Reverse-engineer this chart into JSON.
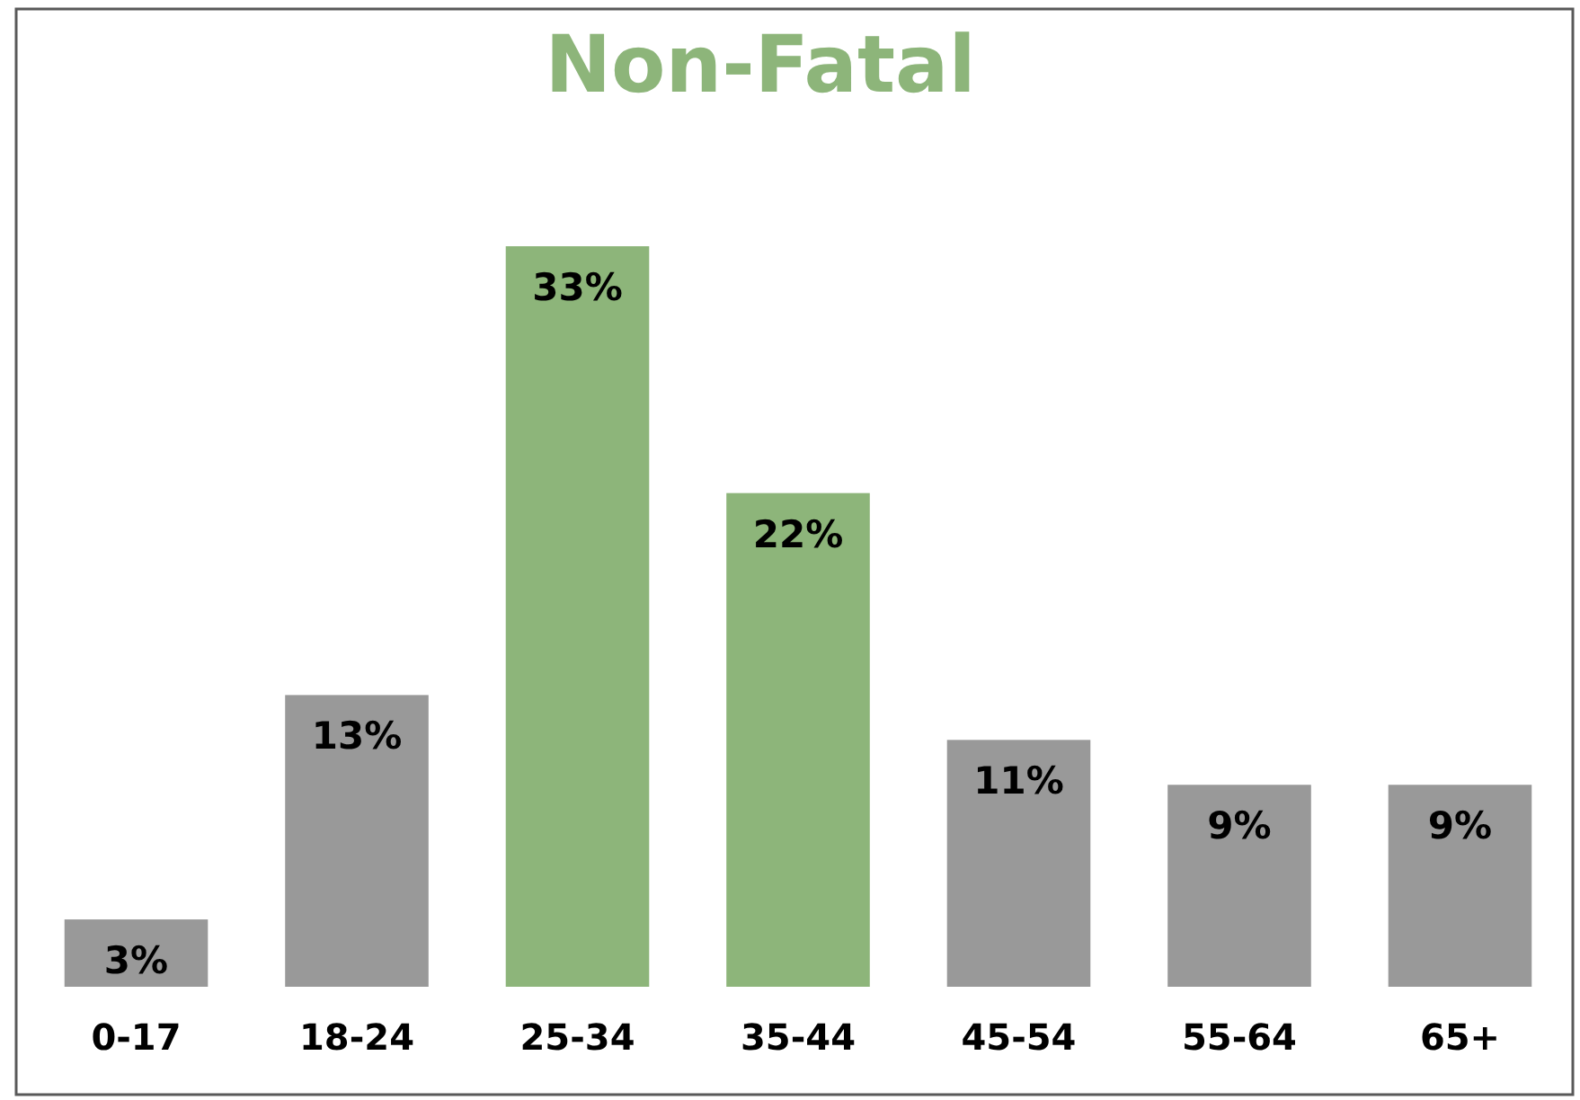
{
  "chart_data": {
    "type": "bar",
    "title": "Non-Fatal",
    "categories": [
      "0-17",
      "18-24",
      "25-34",
      "35-44",
      "45-54",
      "55-64",
      "65+"
    ],
    "values": [
      3,
      13,
      33,
      22,
      11,
      9,
      9
    ],
    "value_labels": [
      "3%",
      "13%",
      "33%",
      "22%",
      "11%",
      "9%",
      "9%"
    ],
    "colors": [
      "#999999",
      "#999999",
      "#8db57a",
      "#8db57a",
      "#999999",
      "#999999",
      "#999999"
    ],
    "grid": false
  }
}
